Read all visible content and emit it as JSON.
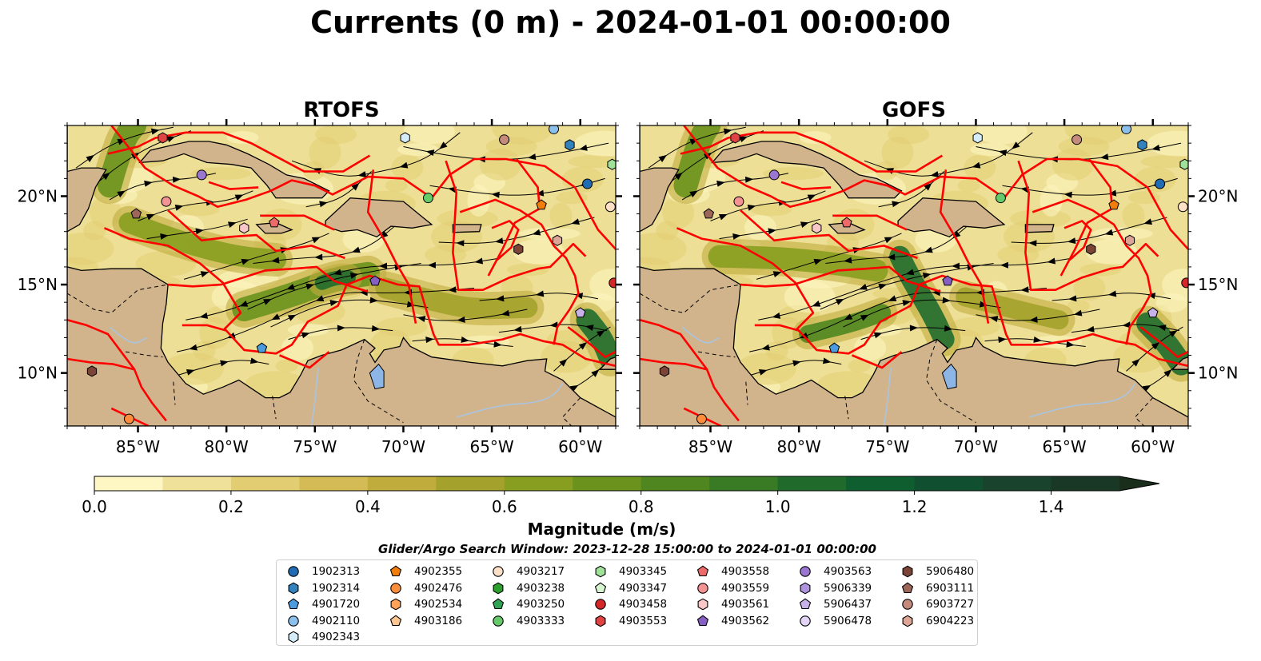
{
  "title": "Currents (0 m) - 2024-01-01 00:00:00",
  "panels": [
    {
      "title": "RTOFS",
      "name": "rtofs"
    },
    {
      "title": "GOFS",
      "name": "gofs"
    }
  ],
  "map_extent": {
    "lon_min": -89,
    "lon_max": -58,
    "lat_min": 7,
    "lat_max": 24
  },
  "lon_ticks": [
    {
      "value": -85,
      "label": "85°W"
    },
    {
      "value": -80,
      "label": "80°W"
    },
    {
      "value": -75,
      "label": "75°W"
    },
    {
      "value": -70,
      "label": "70°W"
    },
    {
      "value": -65,
      "label": "65°W"
    },
    {
      "value": -60,
      "label": "60°W"
    }
  ],
  "lat_ticks": [
    {
      "value": 20,
      "label": "20°N"
    },
    {
      "value": 15,
      "label": "15°N"
    },
    {
      "value": 10,
      "label": "10°N"
    }
  ],
  "colors": {
    "land": "#d2b48c",
    "water": "#eedf96",
    "eez": "#ff0000",
    "lake": "#8db5e6",
    "river": "#a9c4e0"
  },
  "colorbar": {
    "label": "Magnitude (m/s)",
    "min": 0.0,
    "max": 1.5,
    "extend": "max",
    "ticks": [
      {
        "value": 0.0,
        "label": "0.0"
      },
      {
        "value": 0.2,
        "label": "0.2"
      },
      {
        "value": 0.4,
        "label": "0.4"
      },
      {
        "value": 0.6,
        "label": "0.6"
      },
      {
        "value": 0.8,
        "label": "0.8"
      },
      {
        "value": 1.0,
        "label": "1.0"
      },
      {
        "value": 1.2,
        "label": "1.2"
      },
      {
        "value": 1.4,
        "label": "1.4"
      }
    ],
    "bin_colors": [
      "#fef6c3",
      "#f0e19a",
      "#e2cd73",
      "#d4bb55",
      "#c0ac3d",
      "#a4a22c",
      "#879e20",
      "#6a921d",
      "#4f8620",
      "#397b24",
      "#206b2c",
      "#0e5e30",
      "#105030",
      "#19432d",
      "#1a3826",
      "#1a2e1c"
    ]
  },
  "search_window": "Glider/Argo Search Window: 2023-12-28 15:00:00 to 2024-01-01 00:00:00",
  "legend": [
    {
      "label": "1902313",
      "shape": "circle",
      "color": "#1f6cb5"
    },
    {
      "label": "1902314",
      "shape": "hexagon",
      "color": "#3182bd"
    },
    {
      "label": "4901720",
      "shape": "pentagon",
      "color": "#4a9be0"
    },
    {
      "label": "4902110",
      "shape": "circle",
      "color": "#8cc0ec"
    },
    {
      "label": "4902343",
      "shape": "hexagon",
      "color": "#d5ecfb"
    },
    {
      "label": "4902355",
      "shape": "pentagon",
      "color": "#f07d0c"
    },
    {
      "label": "4902476",
      "shape": "circle",
      "color": "#fd8d3c"
    },
    {
      "label": "4902534",
      "shape": "hexagon",
      "color": "#fda35a"
    },
    {
      "label": "4903186",
      "shape": "pentagon",
      "color": "#fdc590"
    },
    {
      "label": "4903217",
      "shape": "circle",
      "color": "#fde0c8"
    },
    {
      "label": "4903238",
      "shape": "hexagon",
      "color": "#2ca02c"
    },
    {
      "label": "4903250",
      "shape": "pentagon",
      "color": "#31a354"
    },
    {
      "label": "4903333",
      "shape": "circle",
      "color": "#66c96a"
    },
    {
      "label": "4903345",
      "shape": "hexagon",
      "color": "#a1e29a"
    },
    {
      "label": "4903347",
      "shape": "pentagon",
      "color": "#d6f5d0"
    },
    {
      "label": "4903458",
      "shape": "circle",
      "color": "#d62728"
    },
    {
      "label": "4903553",
      "shape": "hexagon",
      "color": "#e04343"
    },
    {
      "label": "4903558",
      "shape": "pentagon",
      "color": "#ec6a6a"
    },
    {
      "label": "4903559",
      "shape": "circle",
      "color": "#f39393"
    },
    {
      "label": "4903561",
      "shape": "hexagon",
      "color": "#f9c7c7"
    },
    {
      "label": "4903562",
      "shape": "pentagon",
      "color": "#8560c2"
    },
    {
      "label": "4903563",
      "shape": "circle",
      "color": "#9a76d0"
    },
    {
      "label": "5906339",
      "shape": "hexagon",
      "color": "#b093de"
    },
    {
      "label": "5906437",
      "shape": "pentagon",
      "color": "#c8b2ea"
    },
    {
      "label": "5906478",
      "shape": "circle",
      "color": "#e2d4f6"
    },
    {
      "label": "5906480",
      "shape": "hexagon",
      "color": "#7b4436"
    },
    {
      "label": "6903111",
      "shape": "pentagon",
      "color": "#9c6658"
    },
    {
      "label": "6903727",
      "shape": "circle",
      "color": "#c48a7c"
    },
    {
      "label": "6904223",
      "shape": "hexagon",
      "color": "#dca596"
    }
  ],
  "platforms": [
    {
      "id": "1902313",
      "lon": -59.6,
      "lat": 20.7
    },
    {
      "id": "1902314",
      "lon": -60.6,
      "lat": 22.9
    },
    {
      "id": "4901720",
      "lon": -78.0,
      "lat": 11.4
    },
    {
      "id": "4902110",
      "lon": -61.5,
      "lat": 23.8
    },
    {
      "id": "4902343",
      "lon": -69.9,
      "lat": 23.3
    },
    {
      "id": "4902355",
      "lon": -62.2,
      "lat": 19.5
    },
    {
      "id": "4902476",
      "lon": -85.5,
      "lat": 7.4
    },
    {
      "id": "4903217",
      "lon": -58.3,
      "lat": 19.4
    },
    {
      "id": "4903333",
      "lon": -68.6,
      "lat": 19.9
    },
    {
      "id": "4903345",
      "lon": -58.2,
      "lat": 21.8
    },
    {
      "id": "4903458",
      "lon": -58.1,
      "lat": 15.1
    },
    {
      "id": "4903553",
      "lon": -83.6,
      "lat": 23.3
    },
    {
      "id": "4903558",
      "lon": -77.3,
      "lat": 18.5
    },
    {
      "id": "4903559",
      "lon": -83.4,
      "lat": 19.7
    },
    {
      "id": "4903561",
      "lon": -79.0,
      "lat": 18.2
    },
    {
      "id": "4903562",
      "lon": -71.6,
      "lat": 15.2
    },
    {
      "id": "4903563",
      "lon": -81.4,
      "lat": 21.2
    },
    {
      "id": "5906437",
      "lon": -60.0,
      "lat": 13.4
    },
    {
      "id": "5906480",
      "lon": -63.5,
      "lat": 17.0
    },
    {
      "id": "6903111",
      "lon": -85.1,
      "lat": 19.0
    },
    {
      "id": "6903727",
      "lon": -64.3,
      "lat": 23.2
    },
    {
      "id": "6904223",
      "lon": -61.3,
      "lat": 17.5
    },
    {
      "id": "5906480",
      "lon": -87.6,
      "lat": 10.1
    }
  ]
}
